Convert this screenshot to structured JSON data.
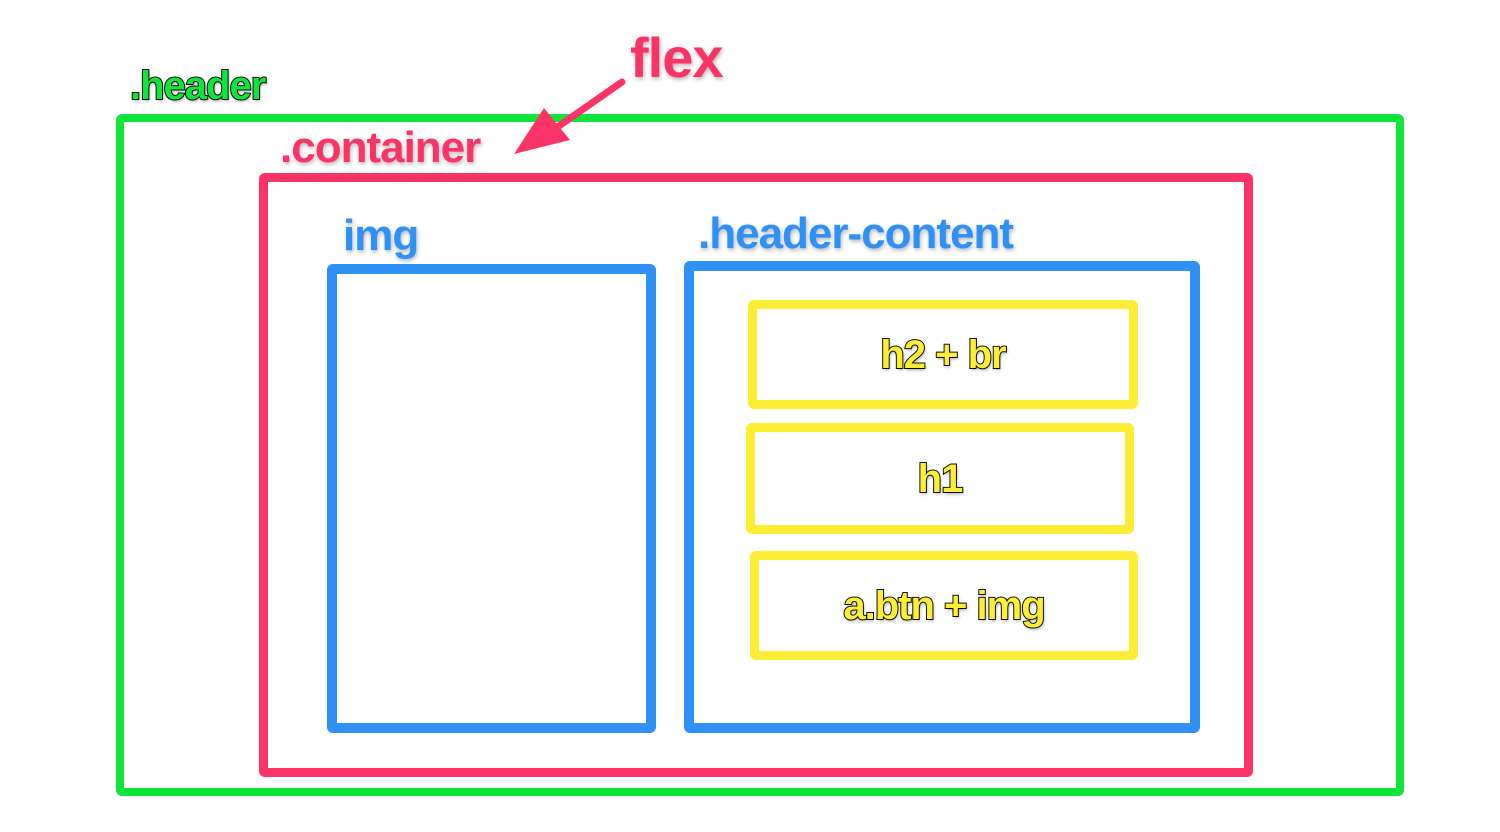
{
  "colors": {
    "header": "#0fe53a",
    "container": "#fb3467",
    "column": "#2f90f5",
    "item": "#fbee34",
    "outline": "#111111"
  },
  "labels": {
    "header": ".header",
    "flex": "flex",
    "container": ".container",
    "img": "img",
    "header_content": ".header-content"
  },
  "items": [
    {
      "label": "h2 + br"
    },
    {
      "label": "h1"
    },
    {
      "label": "a.btn + img"
    }
  ]
}
